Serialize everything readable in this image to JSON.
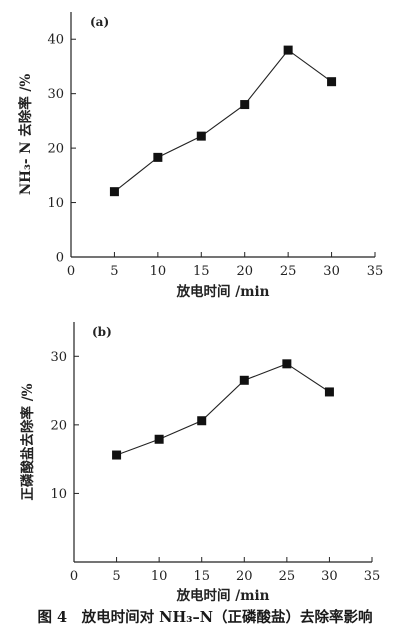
{
  "figure": {
    "caption": "图 4　放电时间对 NH₃–N（正磷酸盐）去除率影响"
  },
  "chart_data": [
    {
      "type": "line",
      "panel_label": "(a)",
      "xlabel": "放电时间 /min",
      "ylabel": "NH₃- N 去除率 /%",
      "xlim": [
        0,
        35
      ],
      "ylim": [
        0,
        45
      ],
      "xticks": [
        0,
        5,
        10,
        15,
        20,
        25,
        30,
        35
      ],
      "yticks": [
        0,
        10,
        20,
        30,
        40
      ],
      "grid": false,
      "x": [
        5,
        10,
        15,
        20,
        25,
        30
      ],
      "y": [
        12,
        18.3,
        22.2,
        28,
        38,
        32.2
      ]
    },
    {
      "type": "line",
      "panel_label": "(b)",
      "xlabel": "放电时间 /min",
      "ylabel": "正磷酸盐去除率 /%",
      "xlim": [
        0,
        35
      ],
      "ylim": [
        0,
        35
      ],
      "xticks": [
        0,
        5,
        10,
        15,
        20,
        25,
        30,
        35
      ],
      "yticks": [
        10,
        20,
        30
      ],
      "grid": false,
      "x": [
        5,
        10,
        15,
        20,
        25,
        30
      ],
      "y": [
        15.6,
        17.9,
        20.6,
        26.5,
        28.9,
        24.8
      ]
    }
  ]
}
